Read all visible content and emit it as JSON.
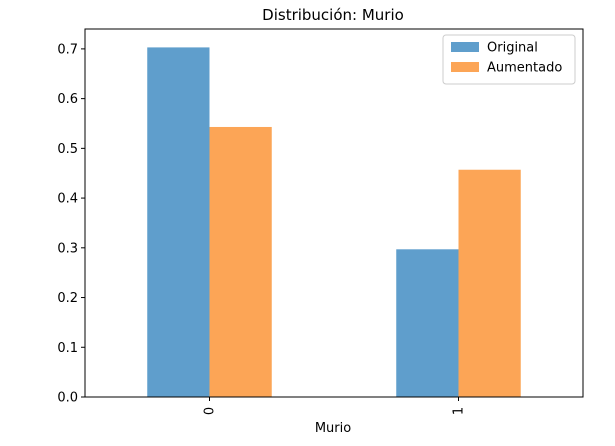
{
  "chart_data": {
    "type": "bar",
    "title": "Distribución: Murio",
    "xlabel": "Murio",
    "ylabel": "",
    "categories": [
      "0",
      "1"
    ],
    "series": [
      {
        "name": "Original",
        "values": [
          0.703,
          0.297
        ],
        "color": "#5f9ecc"
      },
      {
        "name": "Aumentado",
        "values": [
          0.543,
          0.457
        ],
        "color": "#fca556"
      }
    ],
    "ylim": [
      0,
      0.74
    ],
    "yticks": [
      0.0,
      0.1,
      0.2,
      0.3,
      0.4,
      0.5,
      0.6,
      0.7
    ],
    "ytick_labels": [
      "0.0",
      "0.1",
      "0.2",
      "0.3",
      "0.4",
      "0.5",
      "0.6",
      "0.7"
    ],
    "xtick_rotation": "vertical",
    "grid": false,
    "legend_position": "top-right"
  }
}
